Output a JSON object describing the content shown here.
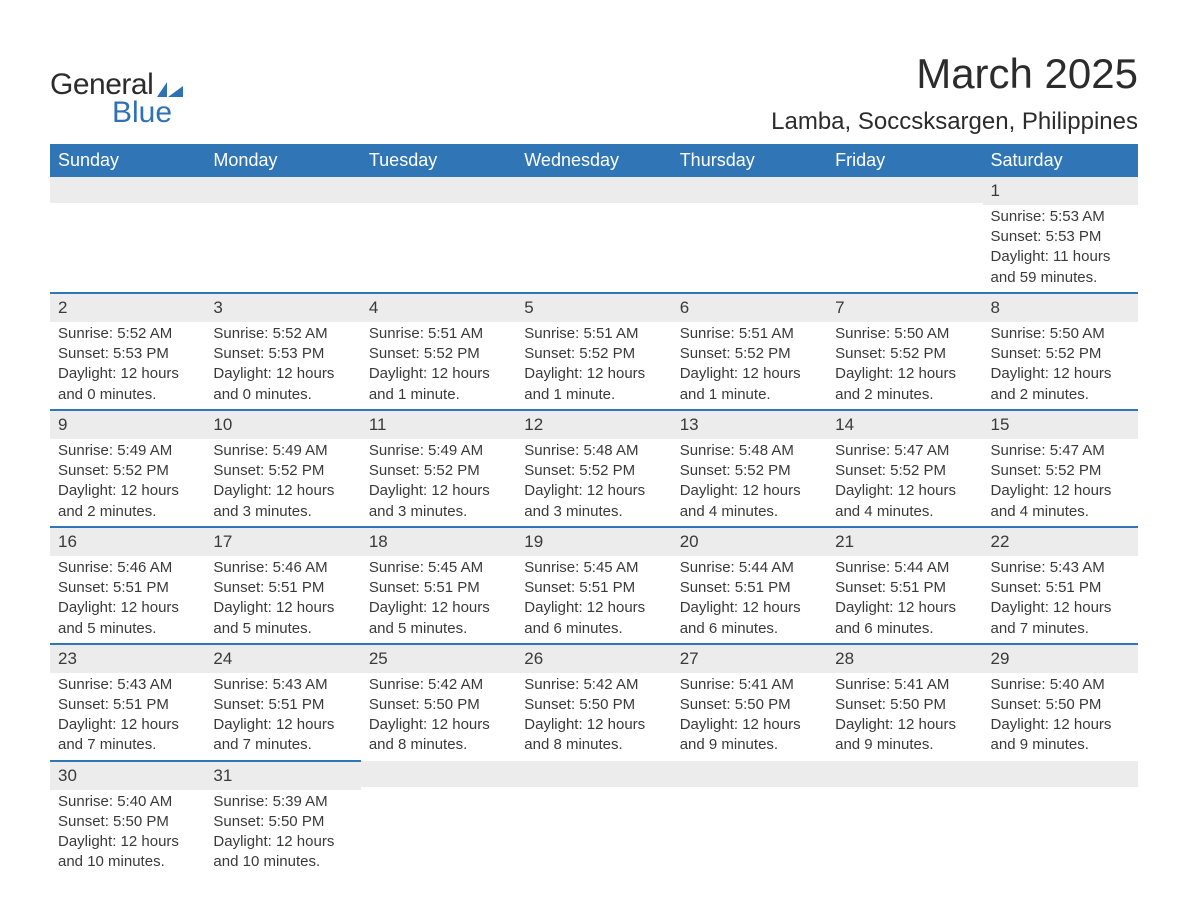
{
  "logo": {
    "text1": "General",
    "text2": "Blue",
    "mark_color": "#2f72b3"
  },
  "title": "March 2025",
  "location": "Lamba, Soccsksargen, Philippines",
  "colors": {
    "header_bg": "#3076b6",
    "header_text": "#ffffff",
    "row_divider": "#3076b6",
    "daynum_bg": "#ececec",
    "body_text": "#3a3a3a",
    "page_bg": "#ffffff"
  },
  "typography": {
    "title_fontsize_pt": 32,
    "location_fontsize_pt": 18,
    "header_fontsize_pt": 14,
    "cell_fontsize_pt": 11
  },
  "layout": {
    "columns": 7,
    "rows": 6,
    "first_day_column_index": 6
  },
  "weekdays": [
    "Sunday",
    "Monday",
    "Tuesday",
    "Wednesday",
    "Thursday",
    "Friday",
    "Saturday"
  ],
  "days": [
    {
      "n": 1,
      "sunrise": "5:53 AM",
      "sunset": "5:53 PM",
      "daylight": "11 hours and 59 minutes."
    },
    {
      "n": 2,
      "sunrise": "5:52 AM",
      "sunset": "5:53 PM",
      "daylight": "12 hours and 0 minutes."
    },
    {
      "n": 3,
      "sunrise": "5:52 AM",
      "sunset": "5:53 PM",
      "daylight": "12 hours and 0 minutes."
    },
    {
      "n": 4,
      "sunrise": "5:51 AM",
      "sunset": "5:52 PM",
      "daylight": "12 hours and 1 minute."
    },
    {
      "n": 5,
      "sunrise": "5:51 AM",
      "sunset": "5:52 PM",
      "daylight": "12 hours and 1 minute."
    },
    {
      "n": 6,
      "sunrise": "5:51 AM",
      "sunset": "5:52 PM",
      "daylight": "12 hours and 1 minute."
    },
    {
      "n": 7,
      "sunrise": "5:50 AM",
      "sunset": "5:52 PM",
      "daylight": "12 hours and 2 minutes."
    },
    {
      "n": 8,
      "sunrise": "5:50 AM",
      "sunset": "5:52 PM",
      "daylight": "12 hours and 2 minutes."
    },
    {
      "n": 9,
      "sunrise": "5:49 AM",
      "sunset": "5:52 PM",
      "daylight": "12 hours and 2 minutes."
    },
    {
      "n": 10,
      "sunrise": "5:49 AM",
      "sunset": "5:52 PM",
      "daylight": "12 hours and 3 minutes."
    },
    {
      "n": 11,
      "sunrise": "5:49 AM",
      "sunset": "5:52 PM",
      "daylight": "12 hours and 3 minutes."
    },
    {
      "n": 12,
      "sunrise": "5:48 AM",
      "sunset": "5:52 PM",
      "daylight": "12 hours and 3 minutes."
    },
    {
      "n": 13,
      "sunrise": "5:48 AM",
      "sunset": "5:52 PM",
      "daylight": "12 hours and 4 minutes."
    },
    {
      "n": 14,
      "sunrise": "5:47 AM",
      "sunset": "5:52 PM",
      "daylight": "12 hours and 4 minutes."
    },
    {
      "n": 15,
      "sunrise": "5:47 AM",
      "sunset": "5:52 PM",
      "daylight": "12 hours and 4 minutes."
    },
    {
      "n": 16,
      "sunrise": "5:46 AM",
      "sunset": "5:51 PM",
      "daylight": "12 hours and 5 minutes."
    },
    {
      "n": 17,
      "sunrise": "5:46 AM",
      "sunset": "5:51 PM",
      "daylight": "12 hours and 5 minutes."
    },
    {
      "n": 18,
      "sunrise": "5:45 AM",
      "sunset": "5:51 PM",
      "daylight": "12 hours and 5 minutes."
    },
    {
      "n": 19,
      "sunrise": "5:45 AM",
      "sunset": "5:51 PM",
      "daylight": "12 hours and 6 minutes."
    },
    {
      "n": 20,
      "sunrise": "5:44 AM",
      "sunset": "5:51 PM",
      "daylight": "12 hours and 6 minutes."
    },
    {
      "n": 21,
      "sunrise": "5:44 AM",
      "sunset": "5:51 PM",
      "daylight": "12 hours and 6 minutes."
    },
    {
      "n": 22,
      "sunrise": "5:43 AM",
      "sunset": "5:51 PM",
      "daylight": "12 hours and 7 minutes."
    },
    {
      "n": 23,
      "sunrise": "5:43 AM",
      "sunset": "5:51 PM",
      "daylight": "12 hours and 7 minutes."
    },
    {
      "n": 24,
      "sunrise": "5:43 AM",
      "sunset": "5:51 PM",
      "daylight": "12 hours and 7 minutes."
    },
    {
      "n": 25,
      "sunrise": "5:42 AM",
      "sunset": "5:50 PM",
      "daylight": "12 hours and 8 minutes."
    },
    {
      "n": 26,
      "sunrise": "5:42 AM",
      "sunset": "5:50 PM",
      "daylight": "12 hours and 8 minutes."
    },
    {
      "n": 27,
      "sunrise": "5:41 AM",
      "sunset": "5:50 PM",
      "daylight": "12 hours and 9 minutes."
    },
    {
      "n": 28,
      "sunrise": "5:41 AM",
      "sunset": "5:50 PM",
      "daylight": "12 hours and 9 minutes."
    },
    {
      "n": 29,
      "sunrise": "5:40 AM",
      "sunset": "5:50 PM",
      "daylight": "12 hours and 9 minutes."
    },
    {
      "n": 30,
      "sunrise": "5:40 AM",
      "sunset": "5:50 PM",
      "daylight": "12 hours and 10 minutes."
    },
    {
      "n": 31,
      "sunrise": "5:39 AM",
      "sunset": "5:50 PM",
      "daylight": "12 hours and 10 minutes."
    }
  ],
  "labels": {
    "sunrise": "Sunrise:",
    "sunset": "Sunset:",
    "daylight": "Daylight:"
  }
}
